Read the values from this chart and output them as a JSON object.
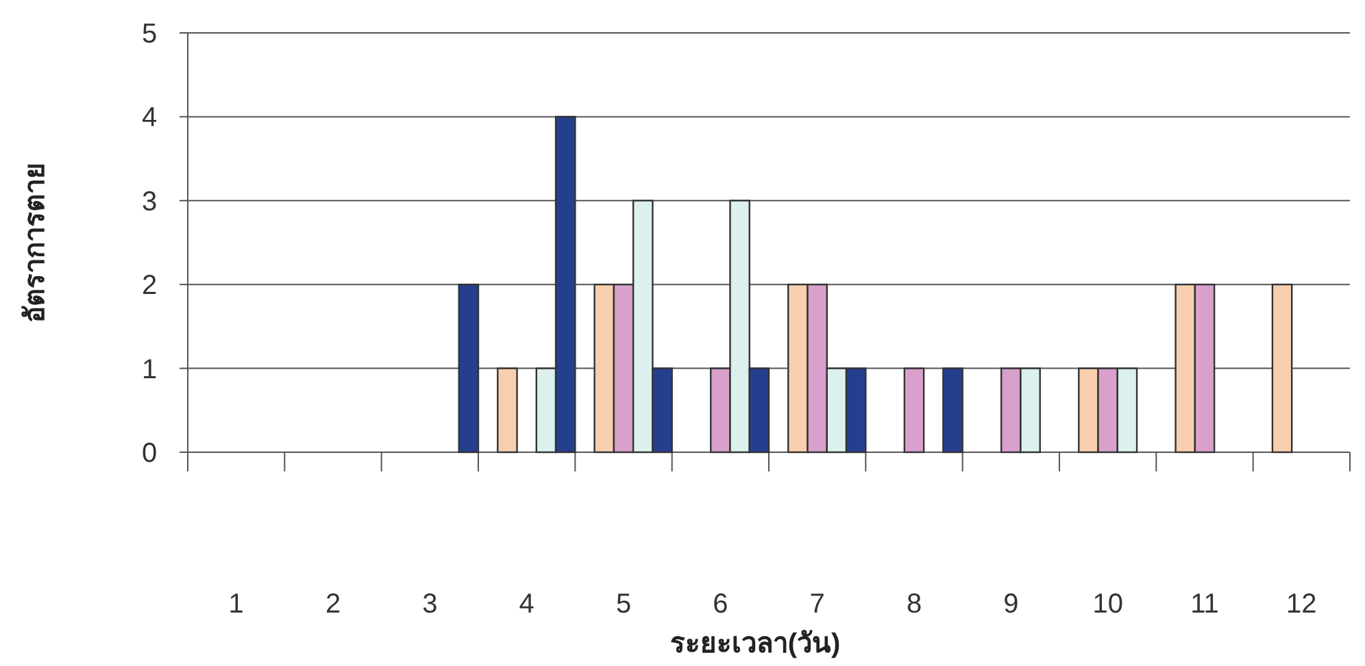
{
  "chart_data": {
    "type": "bar",
    "xlabel": "ระยะเวลา(วัน)",
    "ylabel": "อัตราการตาย",
    "categories": [
      "1",
      "2",
      "3",
      "4",
      "5",
      "6",
      "7",
      "8",
      "9",
      "10",
      "11",
      "12"
    ],
    "series": [
      {
        "color": "#f8cfae",
        "values": [
          0,
          0,
          0,
          1,
          2,
          0,
          2,
          0,
          0,
          1,
          2,
          2
        ]
      },
      {
        "color": "#d9a0cc",
        "values": [
          0,
          0,
          0,
          0,
          2,
          1,
          2,
          1,
          1,
          1,
          2,
          0
        ]
      },
      {
        "color": "#dcf0ee",
        "values": [
          0,
          0,
          0,
          1,
          3,
          3,
          1,
          0,
          1,
          1,
          0,
          0
        ]
      },
      {
        "color": "#253f8f",
        "values": [
          0,
          0,
          2,
          4,
          1,
          1,
          1,
          1,
          0,
          0,
          0,
          0
        ]
      }
    ],
    "ylim": [
      0,
      5
    ],
    "yticks": [
      0,
      1,
      2,
      3,
      4,
      5
    ],
    "grid": "y"
  }
}
